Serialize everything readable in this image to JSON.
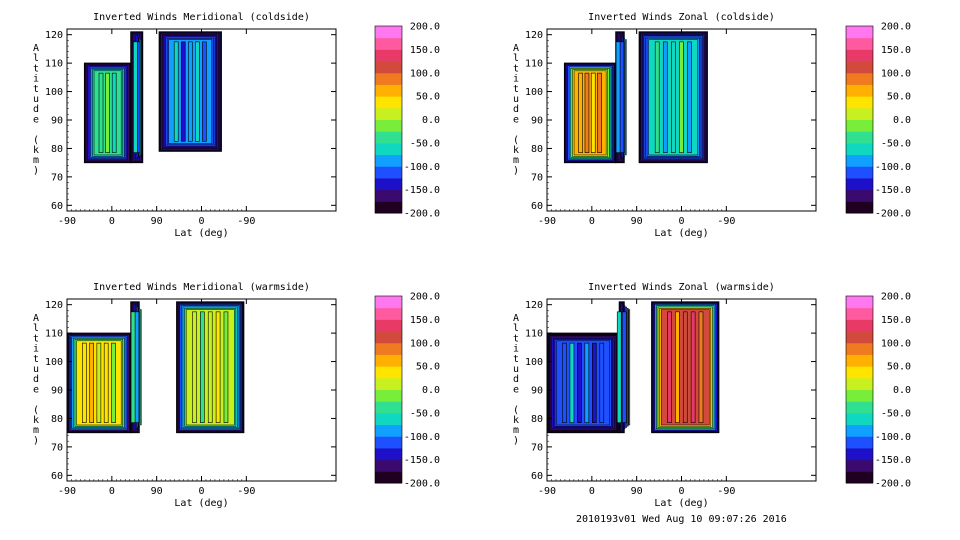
{
  "page": {
    "footer": "2010193v01 Wed Aug 10 09:07:26 2016"
  },
  "colorbar": {
    "ticks": [
      "200.0",
      "150.0",
      "100.0",
      "50.0",
      "0.0",
      "-50.0",
      "-100.0",
      "-150.0",
      "-200.0"
    ],
    "range": [
      -200,
      200
    ],
    "stops": [
      "#200020",
      "#3a0a6e",
      "#1e10c8",
      "#1e50ff",
      "#10a0ff",
      "#10d8c0",
      "#30e090",
      "#78ee3a",
      "#c8f020",
      "#ffe400",
      "#ffb000",
      "#f07a20",
      "#d24a3c",
      "#e83a66",
      "#ff5aa0",
      "#ff78f0"
    ]
  },
  "chart_data": [
    {
      "type": "heatmap",
      "title": "Inverted Winds Meridional (coldside)",
      "xlabel": "Lat (deg)",
      "ylabel": "Altitude (km)",
      "xticks": [
        "-90",
        "0",
        "90",
        "0",
        "-90"
      ],
      "yticks": [
        "60",
        "70",
        "80",
        "90",
        "100",
        "110",
        "120"
      ],
      "ylim": [
        58,
        122
      ],
      "xlim": [
        -90,
        450
      ],
      "colorbar_range": [
        -200,
        200
      ],
      "regions": [
        {
          "lat_range": [
            -55,
            38
          ],
          "alt_range": [
            75,
            110
          ],
          "typical_wind": -40
        },
        {
          "lat_range": [
            38,
            62
          ],
          "alt_range": [
            75,
            121
          ],
          "typical_wind": -70
        },
        {
          "lat_range": [
            95,
            220
          ],
          "alt_range": [
            79,
            121
          ],
          "typical_wind": -90
        }
      ]
    },
    {
      "type": "heatmap",
      "title": "Inverted Winds Zonal (coldside)",
      "xlabel": "Lat (deg)",
      "ylabel": "Altitude (km)",
      "xticks": [
        "-90",
        "0",
        "90",
        "0",
        "-90"
      ],
      "yticks": [
        "60",
        "70",
        "80",
        "90",
        "100",
        "110",
        "120"
      ],
      "ylim": [
        58,
        122
      ],
      "xlim": [
        -90,
        450
      ],
      "colorbar_range": [
        -200,
        200
      ],
      "regions": [
        {
          "lat_range": [
            -55,
            48
          ],
          "alt_range": [
            75,
            110
          ],
          "typical_wind": 60
        },
        {
          "lat_range": [
            48,
            65
          ],
          "alt_range": [
            75,
            121
          ],
          "typical_wind": -80
        },
        {
          "lat_range": [
            95,
            232
          ],
          "alt_range": [
            75,
            121
          ],
          "typical_wind": -60
        }
      ]
    },
    {
      "type": "heatmap",
      "title": "Inverted Winds Meridional (warmside)",
      "xlabel": "Lat (deg)",
      "ylabel": "Altitude (km)",
      "xticks": [
        "-90",
        "0",
        "90",
        "0",
        "-90"
      ],
      "yticks": [
        "60",
        "70",
        "80",
        "90",
        "100",
        "110",
        "120"
      ],
      "ylim": [
        58,
        122
      ],
      "xlim": [
        -90,
        450
      ],
      "colorbar_range": [
        -200,
        200
      ],
      "regions": [
        {
          "lat_range": [
            -90,
            38
          ],
          "alt_range": [
            75,
            110
          ],
          "typical_wind": 30
        },
        {
          "lat_range": [
            38,
            55
          ],
          "alt_range": [
            75,
            121
          ],
          "typical_wind": -40
        },
        {
          "lat_range": [
            130,
            265
          ],
          "alt_range": [
            75,
            121
          ],
          "typical_wind": 5
        }
      ]
    },
    {
      "type": "heatmap",
      "title": "Inverted Winds Zonal (warmside)",
      "xlabel": "Lat (deg)",
      "ylabel": "Altitude (km)",
      "xticks": [
        "-90",
        "0",
        "90",
        "0",
        "-90"
      ],
      "yticks": [
        "60",
        "70",
        "80",
        "90",
        "100",
        "110",
        "120"
      ],
      "ylim": [
        58,
        122
      ],
      "xlim": [
        -90,
        450
      ],
      "colorbar_range": [
        -200,
        200
      ],
      "regions": [
        {
          "lat_range": [
            -90,
            55
          ],
          "alt_range": [
            75,
            110
          ],
          "typical_wind": -110
        },
        {
          "lat_range": [
            55,
            65
          ],
          "alt_range": [
            75,
            121
          ],
          "typical_wind": -70
        },
        {
          "lat_range": [
            120,
            255
          ],
          "alt_range": [
            75,
            121
          ],
          "typical_wind": 110
        }
      ]
    }
  ]
}
